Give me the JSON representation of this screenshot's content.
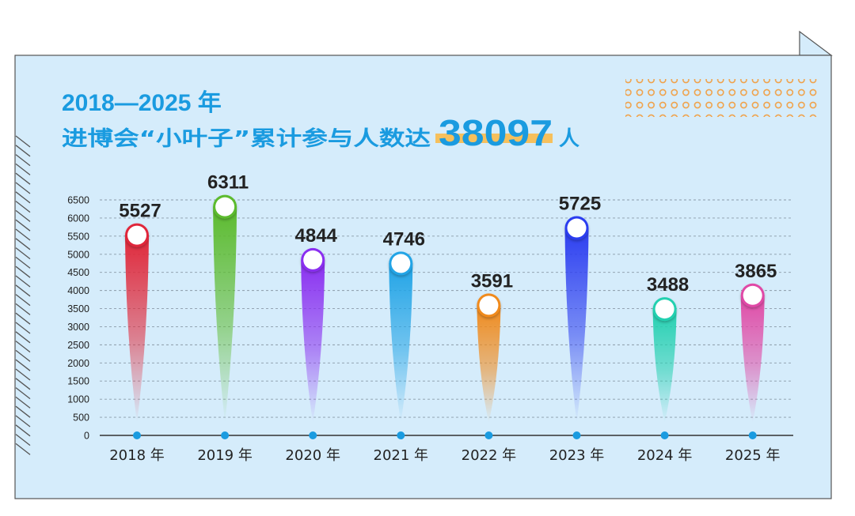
{
  "header": {
    "year_range": "2018—2025 年",
    "headline_prefix": "进博会“小叶子”累计参与人数达",
    "total": "38097",
    "unit": "人"
  },
  "colors": {
    "panel_bg": "#d5ecfb",
    "panel_border": "#555555",
    "title_blue": "#1a9be0",
    "highlight": "#f6c05c",
    "dots": "#f0a24a",
    "axis_dot": "#1a9be0",
    "text_dark": "#222222"
  },
  "chart_data": {
    "type": "bar",
    "title": "进博会“小叶子”累计参与人数",
    "categories": [
      "2018 年",
      "2019 年",
      "2020 年",
      "2021 年",
      "2022 年",
      "2023 年",
      "2024 年",
      "2025 年"
    ],
    "values": [
      5527,
      6311,
      4844,
      4746,
      3591,
      5725,
      3488,
      3865
    ],
    "value_labels": [
      "5527",
      "6311",
      "4844",
      "4746",
      "3591",
      "5725",
      "3488",
      "3865"
    ],
    "bar_colors": [
      "#e0283a",
      "#5cbb2e",
      "#8a2ff0",
      "#22a4e6",
      "#f08a1c",
      "#2c3ef0",
      "#23d0b0",
      "#e04aa6"
    ],
    "y_ticks": [
      0,
      500,
      1000,
      1500,
      2000,
      2500,
      3000,
      3500,
      4000,
      4500,
      5000,
      5500,
      6000,
      6500
    ],
    "y_tick_labels": [
      "0",
      "500",
      "1000",
      "1500",
      "2000",
      "2500",
      "3000",
      "3500",
      "4000",
      "4500",
      "5000",
      "5500",
      "6000",
      "6500"
    ],
    "ylim": [
      0,
      6500
    ],
    "xlabel": "",
    "ylabel": "",
    "grid": true
  }
}
